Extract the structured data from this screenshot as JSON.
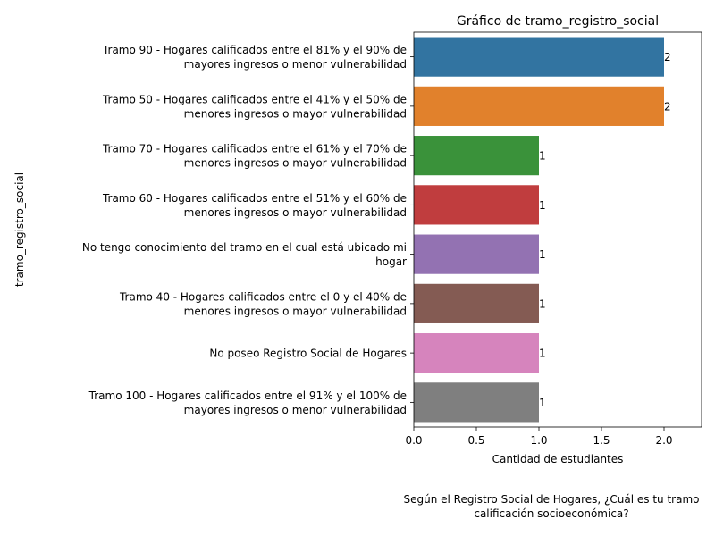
{
  "chart_data": {
    "type": "bar",
    "orientation": "horizontal",
    "title": "Gráfico de tramo_registro_social",
    "xlabel": "Cantidad de estudiantes",
    "ylabel": "tramo_registro_social",
    "caption_lines": [
      "Según el Registro Social de Hogares, ¿Cuál es tu tramo",
      "calificación socioeconómica?"
    ],
    "xlim": [
      0,
      2.3
    ],
    "xticks": [
      "0.0",
      "0.5",
      "1.0",
      "1.5",
      "2.0"
    ],
    "grid": false,
    "categories": [
      [
        "Tramo 90 - Hogares calificados entre el 81% y el 90% de",
        "mayores ingresos o menor vulnerabilidad"
      ],
      [
        "Tramo 50 - Hogares calificados entre el 41% y el 50% de",
        "menores ingresos o mayor vulnerabilidad"
      ],
      [
        "Tramo 70 - Hogares calificados entre el 61% y el 70% de",
        "menores ingresos o mayor vulnerabilidad"
      ],
      [
        "Tramo 60 - Hogares calificados entre el 51% y el 60% de",
        "menores ingresos o mayor vulnerabilidad"
      ],
      [
        "No tengo conocimiento del tramo en el cual está ubicado mi",
        "hogar"
      ],
      [
        "Tramo 40 - Hogares calificados entre el 0 y el 40% de",
        "menores ingresos o mayor vulnerabilidad"
      ],
      [
        "No poseo Registro Social de Hogares"
      ],
      [
        "Tramo 100 - Hogares calificados entre el 91% y el 100% de",
        "mayores ingresos o menor vulnerabilidad"
      ]
    ],
    "values": [
      2,
      2,
      1,
      1,
      1,
      1,
      1,
      1
    ],
    "data_labels": [
      "2",
      "2",
      "1",
      "1",
      "1",
      "1",
      "1",
      "1"
    ],
    "colors": [
      "#3274a1",
      "#e1812c",
      "#3a923a",
      "#c03d3e",
      "#9372b2",
      "#845b53",
      "#d684bd",
      "#7f7f7f"
    ]
  }
}
